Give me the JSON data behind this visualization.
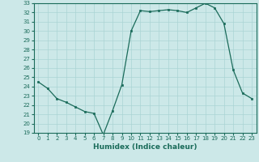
{
  "x": [
    0,
    1,
    2,
    3,
    4,
    5,
    6,
    7,
    8,
    9,
    10,
    11,
    12,
    13,
    14,
    15,
    16,
    17,
    18,
    19,
    20,
    21,
    22,
    23
  ],
  "y": [
    24.5,
    23.8,
    22.7,
    22.3,
    21.8,
    21.3,
    21.1,
    18.8,
    21.4,
    24.2,
    30.0,
    32.2,
    32.1,
    32.2,
    32.3,
    32.2,
    32.0,
    32.5,
    33.0,
    32.5,
    30.8,
    25.8,
    23.3,
    22.7
  ],
  "title": "",
  "xlabel": "Humidex (Indice chaleur)",
  "ylabel": "",
  "ylim": [
    19,
    33
  ],
  "xlim": [
    -0.5,
    23.5
  ],
  "yticks": [
    19,
    20,
    21,
    22,
    23,
    24,
    25,
    26,
    27,
    28,
    29,
    30,
    31,
    32,
    33
  ],
  "xticks": [
    0,
    1,
    2,
    3,
    4,
    5,
    6,
    7,
    8,
    9,
    10,
    11,
    12,
    13,
    14,
    15,
    16,
    17,
    18,
    19,
    20,
    21,
    22,
    23
  ],
  "line_color": "#1a6b5a",
  "marker_color": "#1a6b5a",
  "bg_color": "#cce8e8",
  "grid_color": "#aad4d4",
  "label_fontsize": 6.5,
  "tick_fontsize": 5.0
}
